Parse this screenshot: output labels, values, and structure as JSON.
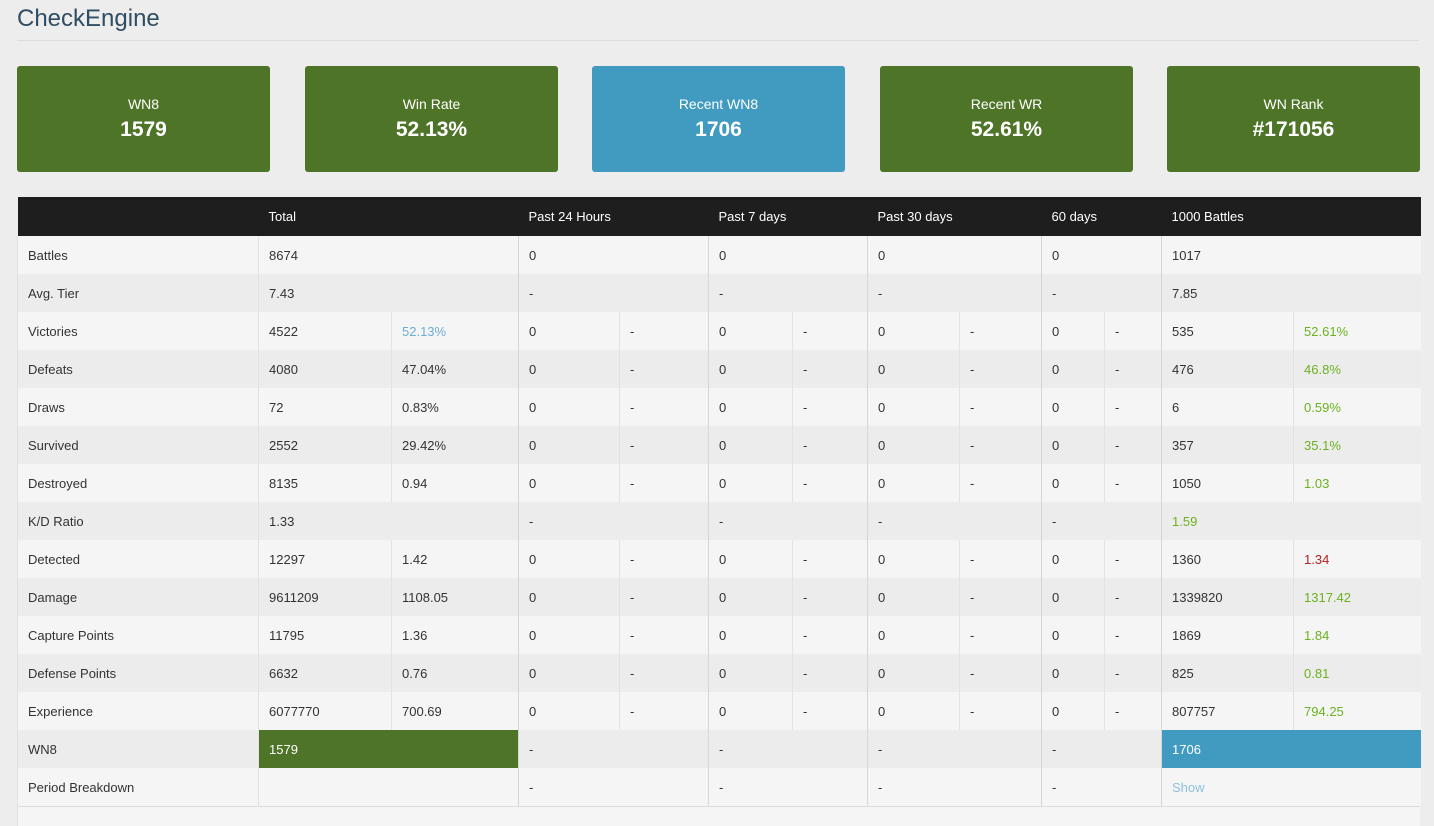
{
  "app_title": "CheckEngine",
  "cards": [
    {
      "label": "WN8",
      "value": "1579",
      "color": "#4e7428"
    },
    {
      "label": "Win Rate",
      "value": "52.13%",
      "color": "#4e7428"
    },
    {
      "label": "Recent WN8",
      "value": "1706",
      "color": "#419bc1"
    },
    {
      "label": "Recent WR",
      "value": "52.61%",
      "color": "#4e7428"
    },
    {
      "label": "WN Rank",
      "value": "#171056",
      "color": "#4e7428"
    }
  ],
  "columns": [
    "",
    "Total",
    "Past 24 Hours",
    "Past 7 days",
    "Past 30 days",
    "60 days",
    "1000 Battles"
  ],
  "rows": [
    {
      "label": "Battles",
      "total": "8674",
      "p24": "0",
      "p7": "0",
      "p30": "0",
      "p60": "0",
      "b1000": "1017"
    },
    {
      "label": "Avg. Tier",
      "total": "7.43",
      "p24": "-",
      "p7": "-",
      "p30": "-",
      "p60": "-",
      "b1000": "7.85"
    },
    {
      "label": "Victories",
      "total": "4522",
      "total2": "52.13%",
      "p24": "0",
      "p24b": "-",
      "p7": "0",
      "p7b": "-",
      "p30": "0",
      "p30b": "-",
      "p60": "0",
      "p60b": "-",
      "b1000": "535",
      "b1000b": "52.61%"
    },
    {
      "label": "Defeats",
      "total": "4080",
      "total2": "47.04%",
      "p24": "0",
      "p24b": "-",
      "p7": "0",
      "p7b": "-",
      "p30": "0",
      "p30b": "-",
      "p60": "0",
      "p60b": "-",
      "b1000": "476",
      "b1000b": "46.8%"
    },
    {
      "label": "Draws",
      "total": "72",
      "total2": "0.83%",
      "p24": "0",
      "p24b": "-",
      "p7": "0",
      "p7b": "-",
      "p30": "0",
      "p30b": "-",
      "p60": "0",
      "p60b": "-",
      "b1000": "6",
      "b1000b": "0.59%"
    },
    {
      "label": "Survived",
      "total": "2552",
      "total2": "29.42%",
      "p24": "0",
      "p24b": "-",
      "p7": "0",
      "p7b": "-",
      "p30": "0",
      "p30b": "-",
      "p60": "0",
      "p60b": "-",
      "b1000": "357",
      "b1000b": "35.1%"
    },
    {
      "label": "Destroyed",
      "total": "8135",
      "total2": "0.94",
      "p24": "0",
      "p24b": "-",
      "p7": "0",
      "p7b": "-",
      "p30": "0",
      "p30b": "-",
      "p60": "0",
      "p60b": "-",
      "b1000": "1050",
      "b1000b": "1.03"
    },
    {
      "label": "K/D Ratio",
      "total": "1.33",
      "p24": "-",
      "p7": "-",
      "p30": "-",
      "p60": "-",
      "b1000": "1.59"
    },
    {
      "label": "Detected",
      "total": "12297",
      "total2": "1.42",
      "p24": "0",
      "p24b": "-",
      "p7": "0",
      "p7b": "-",
      "p30": "0",
      "p30b": "-",
      "p60": "0",
      "p60b": "-",
      "b1000": "1360",
      "b1000b": "1.34"
    },
    {
      "label": "Damage",
      "total": "9611209",
      "total2": "1108.05",
      "p24": "0",
      "p24b": "-",
      "p7": "0",
      "p7b": "-",
      "p30": "0",
      "p30b": "-",
      "p60": "0",
      "p60b": "-",
      "b1000": "1339820",
      "b1000b": "1317.42"
    },
    {
      "label": "Capture Points",
      "total": "11795",
      "total2": "1.36",
      "p24": "0",
      "p24b": "-",
      "p7": "0",
      "p7b": "-",
      "p30": "0",
      "p30b": "-",
      "p60": "0",
      "p60b": "-",
      "b1000": "1869",
      "b1000b": "1.84"
    },
    {
      "label": "Defense Points",
      "total": "6632",
      "total2": "0.76",
      "p24": "0",
      "p24b": "-",
      "p7": "0",
      "p7b": "-",
      "p30": "0",
      "p30b": "-",
      "p60": "0",
      "p60b": "-",
      "b1000": "825",
      "b1000b": "0.81"
    },
    {
      "label": "Experience",
      "total": "6077770",
      "total2": "700.69",
      "p24": "0",
      "p24b": "-",
      "p7": "0",
      "p7b": "-",
      "p30": "0",
      "p30b": "-",
      "p60": "0",
      "p60b": "-",
      "b1000": "807757",
      "b1000b": "794.25"
    },
    {
      "label": "WN8",
      "total": "1579",
      "p24": "-",
      "p7": "-",
      "p30": "-",
      "p60": "-",
      "b1000": "1706"
    },
    {
      "label": "Period Breakdown",
      "total": "",
      "p24": "-",
      "p7": "-",
      "p30": "-",
      "p60": "-",
      "b1000": "Show"
    }
  ],
  "colors": {
    "good": "#6cb11f",
    "bad": "#b22222",
    "neutral": "#6aaed3",
    "wn8_total": "#4e7428",
    "wn8_recent": "#419bc1"
  }
}
